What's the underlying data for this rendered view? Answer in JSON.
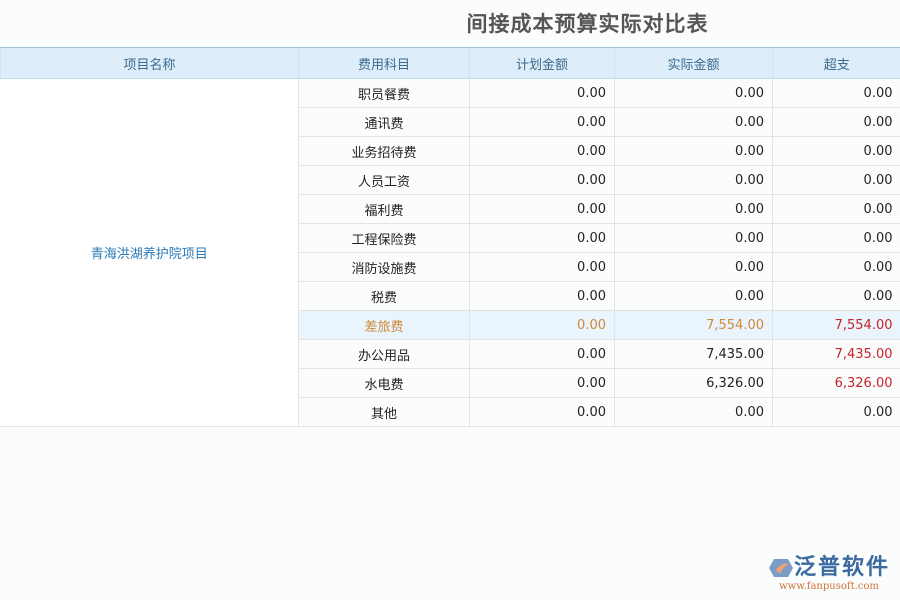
{
  "title": "间接成本预算实际对比表",
  "headers": [
    "项目名称",
    "费用科目",
    "计划金额",
    "实际金额",
    "超支"
  ],
  "project": "青海洪湖养护院项目",
  "rows": [
    {
      "cat": "职员餐费",
      "plan": "0.00",
      "actual": "0.00",
      "over": "0.00"
    },
    {
      "cat": "通讯费",
      "plan": "0.00",
      "actual": "0.00",
      "over": "0.00"
    },
    {
      "cat": "业务招待费",
      "plan": "0.00",
      "actual": "0.00",
      "over": "0.00"
    },
    {
      "cat": "人员工资",
      "plan": "0.00",
      "actual": "0.00",
      "over": "0.00"
    },
    {
      "cat": "福利费",
      "plan": "0.00",
      "actual": "0.00",
      "over": "0.00"
    },
    {
      "cat": "工程保险费",
      "plan": "0.00",
      "actual": "0.00",
      "over": "0.00"
    },
    {
      "cat": "消防设施费",
      "plan": "0.00",
      "actual": "0.00",
      "over": "0.00"
    },
    {
      "cat": "税费",
      "plan": "0.00",
      "actual": "0.00",
      "over": "0.00"
    },
    {
      "cat": "差旅费",
      "plan": "0.00",
      "actual": "7,554.00",
      "over": "7,554.00",
      "highlight": true,
      "overspent": true
    },
    {
      "cat": "办公用品",
      "plan": "0.00",
      "actual": "7,435.00",
      "over": "7,435.00",
      "overspent": true
    },
    {
      "cat": "水电费",
      "plan": "0.00",
      "actual": "6,326.00",
      "over": "6,326.00",
      "overspent": true
    },
    {
      "cat": "其他",
      "plan": "0.00",
      "actual": "0.00",
      "over": "0.00"
    }
  ],
  "logo": {
    "name": "泛普软件",
    "url": "www.fanpusoft.com"
  },
  "colors": {
    "overspent": "#c8222a",
    "highlight_text": "#d08a3a",
    "header_bg": "#ddeefa"
  }
}
